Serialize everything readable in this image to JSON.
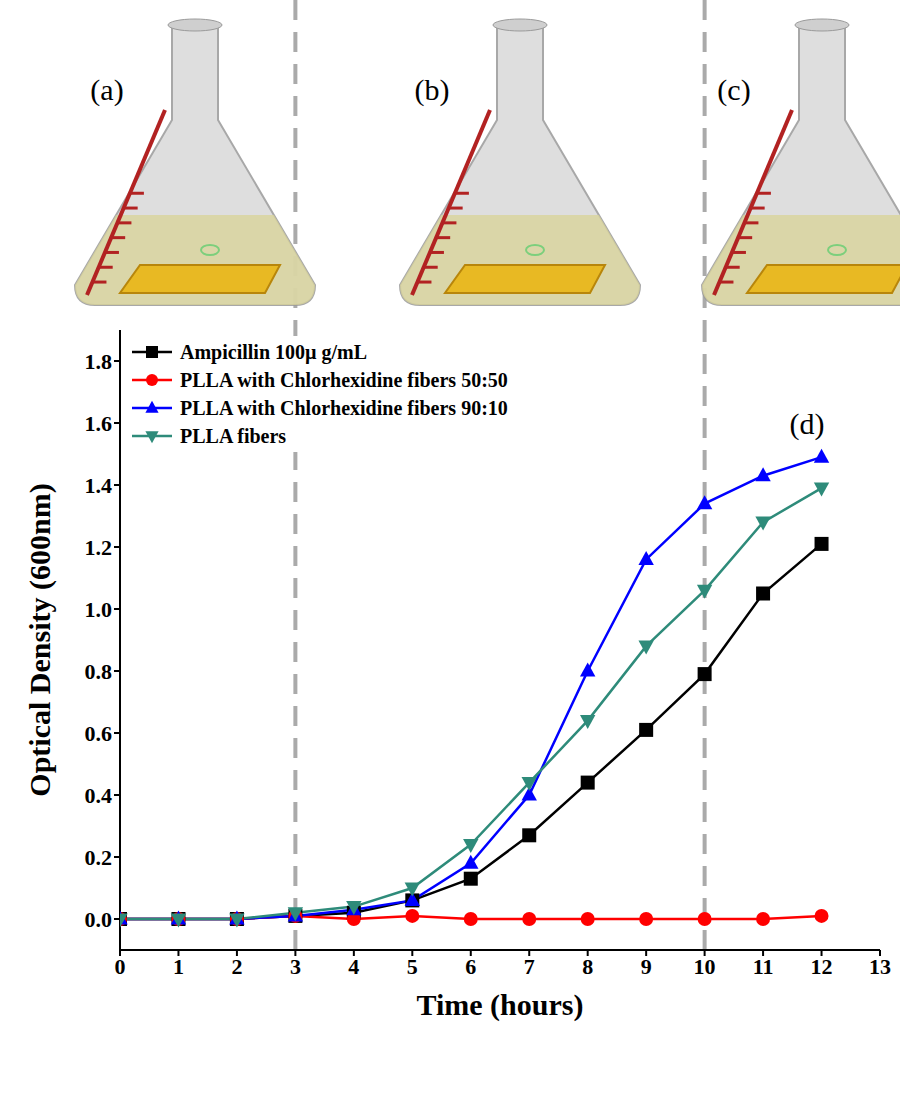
{
  "chart_data": {
    "type": "line",
    "panel_labels": [
      "(a)",
      "(b)",
      "(c)"
    ],
    "annotations": [
      {
        "text": "(d)",
        "x": 11.75,
        "y": 1.6
      }
    ],
    "vlines": [
      3,
      10
    ],
    "xlabel": "Time (hours)",
    "ylabel": "Optical Density (600nm)",
    "x": [
      0,
      1,
      2,
      3,
      4,
      5,
      6,
      7,
      8,
      9,
      10,
      11,
      12
    ],
    "series": [
      {
        "name": "Ampicillin 100µ g/mL",
        "color": "#000000",
        "marker": "square",
        "values": [
          0,
          0,
          0,
          0.01,
          0.02,
          0.06,
          0.13,
          0.27,
          0.44,
          0.61,
          0.79,
          1.05,
          1.21
        ]
      },
      {
        "name": "PLLA with Chlorhexidine fibers 50:50",
        "color": "#ff0000",
        "marker": "circle",
        "values": [
          0,
          0,
          0,
          0.01,
          0,
          0.01,
          0,
          0,
          0,
          0,
          0,
          0,
          0.01
        ]
      },
      {
        "name": "PLLA with Chlorhexidine fibers 90:10",
        "color": "#0000ff",
        "marker": "triangle",
        "values": [
          0,
          0,
          0,
          0.01,
          0.03,
          0.06,
          0.18,
          0.4,
          0.8,
          1.16,
          1.34,
          1.43,
          1.49
        ]
      },
      {
        "name": "PLLA fibers",
        "color": "#2e8b7a",
        "marker": "triangle-down",
        "values": [
          0,
          0,
          0,
          0.02,
          0.04,
          0.1,
          0.24,
          0.44,
          0.64,
          0.88,
          1.06,
          1.28,
          1.39
        ]
      }
    ],
    "xlim": [
      0,
      13
    ],
    "xticks": [
      0,
      1,
      2,
      3,
      4,
      5,
      6,
      7,
      8,
      9,
      10,
      11,
      12,
      13
    ],
    "ylim": [
      -0.1,
      1.9
    ],
    "yticks": [
      {
        "value": 0,
        "label": "0.0"
      },
      {
        "value": 0.2,
        "label": "0.2"
      },
      {
        "value": 0.4,
        "label": "0.4"
      },
      {
        "value": 0.6,
        "label": "0.6"
      },
      {
        "value": 0.8,
        "label": "0.8"
      },
      {
        "value": 1,
        "label": "1.0"
      },
      {
        "value": 1.2,
        "label": "1.2"
      },
      {
        "value": 1.4,
        "label": "1.4"
      },
      {
        "value": 1.6,
        "label": "1.6"
      },
      {
        "value": 1.8,
        "label": "1.8"
      }
    ],
    "legend": "upper left",
    "grid": false
  }
}
